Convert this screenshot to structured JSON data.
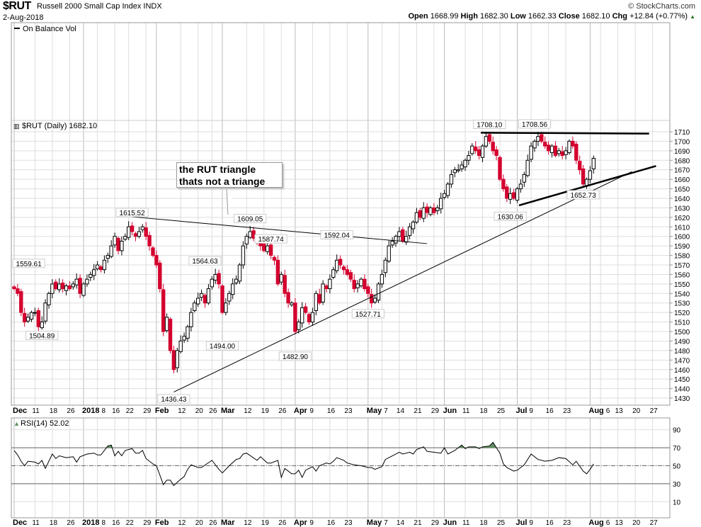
{
  "header": {
    "symbol": "$RUT",
    "name": "Russell 2000 Small Cap Index INDX",
    "date": "2-Aug-2018",
    "brand": "© StockCharts.com",
    "open_label": "Open",
    "open": "1668.99",
    "high_label": "High",
    "high": "1682.30",
    "low_label": "Low",
    "low": "1662.33",
    "close_label": "Close",
    "close": "1682.10",
    "chg_label": "Chg",
    "chg": "+12.84 (+0.77%)",
    "chg_icon": "up-triangle-icon"
  },
  "obv_panel": {
    "legend": "On Balance Vol"
  },
  "price_panel": {
    "legend": "$RUT (Daily) 1682.10"
  },
  "rsi_panel": {
    "legend": "RSI(14) 52.02"
  },
  "callout": {
    "line1": "the RUT triangle",
    "line2": "thats not a triange"
  },
  "colors": {
    "up": "#000000",
    "down": "#d4002f",
    "grid": "#dddddd",
    "rsi_fill": "#5f8f5f"
  },
  "chart_data": [
    {
      "type": "candlestick",
      "title": "$RUT (Daily)",
      "ylim": [
        1425,
        1715
      ],
      "yticks": [
        1430,
        1440,
        1450,
        1460,
        1470,
        1480,
        1490,
        1500,
        1510,
        1520,
        1530,
        1540,
        1550,
        1560,
        1570,
        1580,
        1590,
        1600,
        1610,
        1620,
        1630,
        1640,
        1650,
        1660,
        1670,
        1680,
        1690,
        1700,
        1710
      ],
      "xticks": [
        {
          "label": "Dec",
          "day": 0,
          "bold": true
        },
        {
          "label": "11",
          "day": 6
        },
        {
          "label": "18",
          "day": 11
        },
        {
          "label": "26",
          "day": 16
        },
        {
          "label": "2018",
          "day": 20,
          "bold": true
        },
        {
          "label": "8",
          "day": 24
        },
        {
          "label": "16",
          "day": 29
        },
        {
          "label": "22",
          "day": 33
        },
        {
          "label": "29",
          "day": 38
        },
        {
          "label": "Feb",
          "day": 41,
          "bold": true
        },
        {
          "label": "12",
          "day": 48
        },
        {
          "label": "20",
          "day": 53
        },
        {
          "label": "26",
          "day": 57
        },
        {
          "label": "Mar",
          "day": 60,
          "bold": true
        },
        {
          "label": "12",
          "day": 67
        },
        {
          "label": "19",
          "day": 72
        },
        {
          "label": "26",
          "day": 77
        },
        {
          "label": "Apr",
          "day": 81,
          "bold": true
        },
        {
          "label": "9",
          "day": 86
        },
        {
          "label": "16",
          "day": 91
        },
        {
          "label": "23",
          "day": 96
        },
        {
          "label": "May",
          "day": 102,
          "bold": true
        },
        {
          "label": "7",
          "day": 106
        },
        {
          "label": "14",
          "day": 111
        },
        {
          "label": "21",
          "day": 116
        },
        {
          "label": "29",
          "day": 121
        },
        {
          "label": "Jun",
          "day": 124,
          "bold": true
        },
        {
          "label": "11",
          "day": 130
        },
        {
          "label": "18",
          "day": 135
        },
        {
          "label": "25",
          "day": 140
        },
        {
          "label": "Jul",
          "day": 145,
          "bold": true
        },
        {
          "label": "9",
          "day": 149
        },
        {
          "label": "16",
          "day": 154
        },
        {
          "label": "23",
          "day": 159
        },
        {
          "label": "Aug",
          "day": 166,
          "bold": true
        },
        {
          "label": "6",
          "day": 169
        },
        {
          "label": "13",
          "day": 174
        },
        {
          "label": "20",
          "day": 179
        },
        {
          "label": "27",
          "day": 184
        }
      ],
      "closes": [
        1545,
        1540,
        1520,
        1510,
        1515,
        1520,
        1520,
        1505,
        1510,
        1530,
        1540,
        1550,
        1545,
        1550,
        1545,
        1548,
        1545,
        1550,
        1555,
        1540,
        1550,
        1555,
        1560,
        1565,
        1570,
        1565,
        1575,
        1580,
        1590,
        1600,
        1585,
        1595,
        1600,
        1610,
        1605,
        1600,
        1605,
        1610,
        1600,
        1590,
        1580,
        1570,
        1545,
        1500,
        1515,
        1480,
        1460,
        1480,
        1490,
        1495,
        1505,
        1520,
        1530,
        1535,
        1540,
        1530,
        1545,
        1555,
        1560,
        1550,
        1520,
        1530,
        1540,
        1550,
        1555,
        1570,
        1590,
        1600,
        1605,
        1598,
        1595,
        1590,
        1585,
        1590,
        1580,
        1575,
        1550,
        1560,
        1540,
        1530,
        1530,
        1500,
        1510,
        1525,
        1520,
        1510,
        1520,
        1540,
        1530,
        1550,
        1545,
        1555,
        1565,
        1575,
        1570,
        1565,
        1560,
        1555,
        1545,
        1550,
        1555,
        1545,
        1540,
        1530,
        1535,
        1550,
        1560,
        1575,
        1590,
        1595,
        1600,
        1605,
        1595,
        1600,
        1610,
        1615,
        1625,
        1620,
        1630,
        1625,
        1630,
        1625,
        1630,
        1640,
        1645,
        1655,
        1665,
        1670,
        1670,
        1675,
        1680,
        1685,
        1695,
        1690,
        1685,
        1695,
        1705,
        1700,
        1690,
        1685,
        1660,
        1650,
        1640,
        1645,
        1640,
        1650,
        1655,
        1665,
        1680,
        1695,
        1700,
        1705,
        1700,
        1695,
        1690,
        1695,
        1685,
        1690,
        1685,
        1690,
        1700,
        1695,
        1680,
        1670,
        1655,
        1660,
        1669,
        1682.1
      ],
      "annotations": [
        {
          "text": "1559.61",
          "day": 0,
          "price": 1562,
          "pos": "above"
        },
        {
          "text": "1504.89",
          "day": 8,
          "price": 1504.89,
          "pos": "below"
        },
        {
          "text": "1615.52",
          "day": 34,
          "price": 1615.52,
          "pos": "above"
        },
        {
          "text": "1436.43",
          "day": 46,
          "price": 1436.43,
          "pos": "below"
        },
        {
          "text": "1564.63",
          "day": 55,
          "price": 1564.63,
          "pos": "above"
        },
        {
          "text": "1494.00",
          "day": 60,
          "price": 1494.0,
          "pos": "below"
        },
        {
          "text": "1609.05",
          "day": 68,
          "price": 1609.05,
          "pos": "above"
        },
        {
          "text": "1587.74",
          "day": 74,
          "price": 1587.74,
          "pos": "above"
        },
        {
          "text": "1482.90",
          "day": 81,
          "price": 1482.9,
          "pos": "below"
        },
        {
          "text": "1592.04",
          "day": 93,
          "price": 1592.04,
          "pos": "above"
        },
        {
          "text": "1527.71",
          "day": 102,
          "price": 1527.71,
          "pos": "below"
        },
        {
          "text": "1708.10",
          "day": 137,
          "price": 1708.1,
          "pos": "above"
        },
        {
          "text": "1708.56",
          "day": 150,
          "price": 1708.56,
          "pos": "above"
        },
        {
          "text": "1630.06",
          "day": 143,
          "price": 1630.06,
          "pos": "below"
        },
        {
          "text": "1652.73",
          "day": 164,
          "price": 1652.73,
          "pos": "below"
        }
      ],
      "trendlines": [
        {
          "from": [
            34,
            1620.6
          ],
          "to": [
            119,
            1592.4
          ],
          "weight": "thin"
        },
        {
          "from": [
            46,
            1436.4
          ],
          "to": [
            178,
            1668
          ],
          "weight": "thin"
        },
        {
          "from": [
            145.5,
            1632.6
          ],
          "to": [
            185,
            1674
          ],
          "weight": "thick"
        },
        {
          "from": [
            134.5,
            1709
          ],
          "to": [
            183,
            1708
          ],
          "weight": "thick"
        }
      ]
    },
    {
      "type": "line",
      "title": "RSI(14)",
      "ylim": [
        0,
        100
      ],
      "yticks": [
        10,
        30,
        50,
        70,
        90
      ],
      "reference_lines": [
        30,
        50,
        70
      ],
      "points": [
        [
          0,
          67
        ],
        [
          1,
          62
        ],
        [
          2,
          55
        ],
        [
          3,
          50
        ],
        [
          4,
          55
        ],
        [
          6,
          54
        ],
        [
          7,
          52
        ],
        [
          8,
          56
        ],
        [
          9,
          47
        ],
        [
          11,
          63
        ],
        [
          12,
          58
        ],
        [
          13,
          61
        ],
        [
          15,
          59
        ],
        [
          17,
          60
        ],
        [
          18,
          54
        ],
        [
          19,
          60
        ],
        [
          21,
          63
        ],
        [
          23,
          64
        ],
        [
          24,
          62
        ],
        [
          25,
          62
        ],
        [
          27,
          72
        ],
        [
          28,
          73
        ],
        [
          29,
          61
        ],
        [
          30,
          66
        ],
        [
          31,
          61
        ],
        [
          32,
          67
        ],
        [
          34,
          69
        ],
        [
          35,
          64
        ],
        [
          36,
          64
        ],
        [
          37,
          67
        ],
        [
          38,
          58
        ],
        [
          40,
          52
        ],
        [
          41,
          50
        ],
        [
          43,
          29
        ],
        [
          44,
          34
        ],
        [
          45,
          34
        ],
        [
          46,
          28
        ],
        [
          48,
          35
        ],
        [
          49,
          38
        ],
        [
          50,
          46
        ],
        [
          51,
          51
        ],
        [
          53,
          48
        ],
        [
          54,
          48
        ],
        [
          57,
          56
        ],
        [
          59,
          46
        ],
        [
          60,
          42
        ],
        [
          62,
          50
        ],
        [
          64,
          57
        ],
        [
          65,
          58
        ],
        [
          66,
          63
        ],
        [
          67,
          64
        ],
        [
          70,
          56
        ],
        [
          71,
          60
        ],
        [
          73,
          53
        ],
        [
          74,
          53
        ],
        [
          76,
          56
        ],
        [
          77,
          37
        ],
        [
          78,
          47
        ],
        [
          80,
          41
        ],
        [
          81,
          41
        ],
        [
          82,
          45
        ],
        [
          83,
          37
        ],
        [
          84,
          45
        ],
        [
          86,
          49
        ],
        [
          87,
          44
        ],
        [
          88,
          50
        ],
        [
          90,
          53
        ],
        [
          91,
          52
        ],
        [
          92,
          55
        ],
        [
          93,
          59
        ],
        [
          95,
          56
        ],
        [
          96,
          53
        ],
        [
          98,
          51
        ],
        [
          100,
          50
        ],
        [
          102,
          48
        ],
        [
          103,
          48
        ],
        [
          104,
          46
        ],
        [
          106,
          49
        ],
        [
          107,
          57
        ],
        [
          109,
          61
        ],
        [
          111,
          65
        ],
        [
          112,
          63
        ],
        [
          114,
          65
        ],
        [
          115,
          63
        ],
        [
          116,
          68
        ],
        [
          118,
          71
        ],
        [
          119,
          66
        ],
        [
          121,
          65
        ],
        [
          123,
          64
        ],
        [
          124,
          70
        ],
        [
          125,
          63
        ],
        [
          127,
          67
        ],
        [
          129,
          73
        ],
        [
          130,
          69
        ],
        [
          131,
          71
        ],
        [
          133,
          71
        ],
        [
          134,
          69
        ],
        [
          135,
          71
        ],
        [
          137,
          72
        ],
        [
          138,
          76
        ],
        [
          140,
          64
        ],
        [
          141,
          52
        ],
        [
          142,
          48
        ],
        [
          144,
          44
        ],
        [
          145,
          45
        ],
        [
          147,
          51
        ],
        [
          149,
          63
        ],
        [
          151,
          57
        ],
        [
          153,
          55
        ],
        [
          155,
          56
        ],
        [
          157,
          59
        ],
        [
          159,
          58
        ],
        [
          161,
          51
        ],
        [
          162,
          55
        ],
        [
          164,
          44
        ],
        [
          165,
          41
        ],
        [
          166,
          46
        ],
        [
          167,
          52.02
        ]
      ]
    }
  ]
}
